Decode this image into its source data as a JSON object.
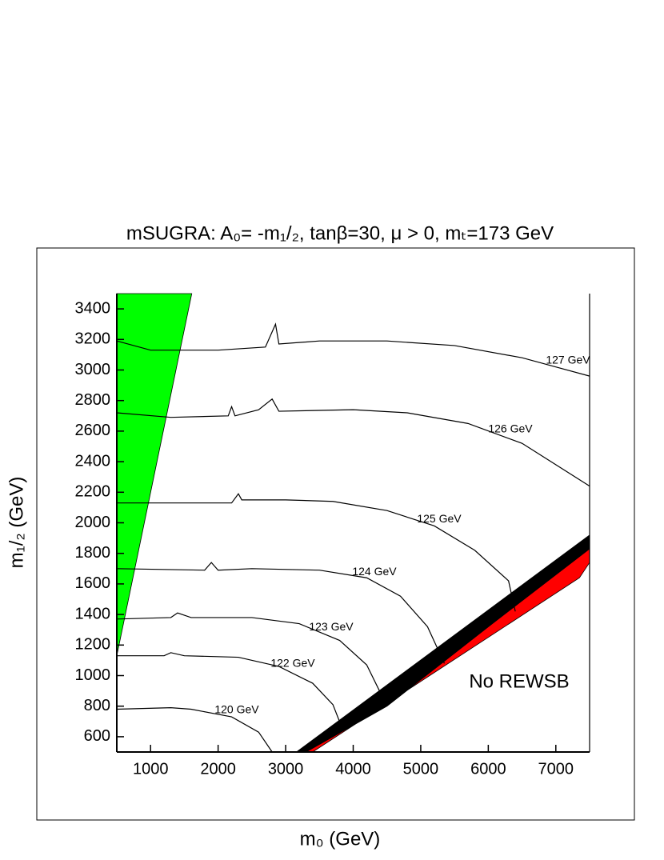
{
  "chart_data": {
    "type": "contour",
    "title": "mSUGRA: A₀= -m₁/₂, tanβ=30, μ > 0, mₜ=173 GeV",
    "x_label": "m₀ (GeV)",
    "y_label": "m₁/₂ (GeV)",
    "xlim": [
      500,
      7500
    ],
    "ylim": [
      500,
      3500
    ],
    "xticks": [
      1000,
      2000,
      3000,
      4000,
      5000,
      6000,
      7000
    ],
    "yticks": [
      600,
      800,
      1000,
      1200,
      1400,
      1600,
      1800,
      2000,
      2200,
      2400,
      2600,
      2800,
      3000,
      3200,
      3400
    ],
    "contours": [
      {
        "label": "127 GeV",
        "color": "#000000",
        "x": [
          500,
          1000,
          2000,
          2700,
          2850,
          2900,
          3500,
          4500,
          5500,
          6500,
          7000,
          7500
        ],
        "y": [
          3190,
          3130,
          3130,
          3150,
          3300,
          3170,
          3190,
          3190,
          3160,
          3080,
          3020,
          2960
        ]
      },
      {
        "label": "126 GeV",
        "color": "#000000",
        "x": [
          500,
          1300,
          2150,
          2200,
          2250,
          2600,
          2800,
          2900,
          4000,
          4800,
          5700,
          6500,
          7000,
          7500
        ],
        "y": [
          2720,
          2690,
          2700,
          2760,
          2700,
          2740,
          2810,
          2730,
          2740,
          2720,
          2650,
          2520,
          2380,
          2240
        ]
      },
      {
        "label": "125 GeV",
        "color": "#000000",
        "x": [
          500,
          2200,
          2300,
          2350,
          3000,
          3700,
          4500,
          5200,
          5800,
          6300,
          6400
        ],
        "y": [
          2130,
          2130,
          2190,
          2150,
          2150,
          2140,
          2080,
          1980,
          1820,
          1620,
          1420
        ]
      },
      {
        "label": "124 GeV",
        "color": "#000000",
        "x": [
          500,
          1800,
          1900,
          2000,
          2500,
          3500,
          4200,
          4700,
          5100,
          5350
        ],
        "y": [
          1700,
          1690,
          1740,
          1690,
          1700,
          1690,
          1640,
          1520,
          1320,
          1080
        ]
      },
      {
        "label": "123 GeV",
        "color": "#000000",
        "x": [
          500,
          1300,
          1400,
          1600,
          2500,
          3200,
          3800,
          4200,
          4500
        ],
        "y": [
          1370,
          1380,
          1410,
          1380,
          1380,
          1340,
          1230,
          1070,
          800
        ]
      },
      {
        "label": "122 GeV",
        "color": "#000000",
        "x": [
          500,
          1200,
          1300,
          1500,
          2300,
          2900,
          3400,
          3700,
          3850
        ],
        "y": [
          1130,
          1130,
          1150,
          1130,
          1120,
          1060,
          950,
          810,
          640
        ]
      },
      {
        "label": "120 GeV",
        "color": "#000000",
        "x": [
          500,
          1300,
          1600,
          2200,
          2600,
          2800
        ],
        "y": [
          780,
          790,
          780,
          730,
          630,
          500
        ]
      }
    ],
    "regions": [
      {
        "color": "#00ff00",
        "x": [
          500,
          500,
          1610
        ],
        "y": [
          1130,
          3500,
          3500
        ]
      },
      {
        "color": "#ff0000",
        "x": [
          3300,
          4500,
          6000,
          7500,
          7500,
          7350,
          3400
        ],
        "y": [
          500,
          800,
          1320,
          1830,
          1740,
          1640,
          500
        ]
      },
      {
        "color": "#000000",
        "x": [
          3160,
          7500,
          7500,
          6000,
          4500,
          3300
        ],
        "y": [
          500,
          1920,
          1830,
          1320,
          800,
          500
        ]
      }
    ],
    "annotation": "No REWSB"
  }
}
